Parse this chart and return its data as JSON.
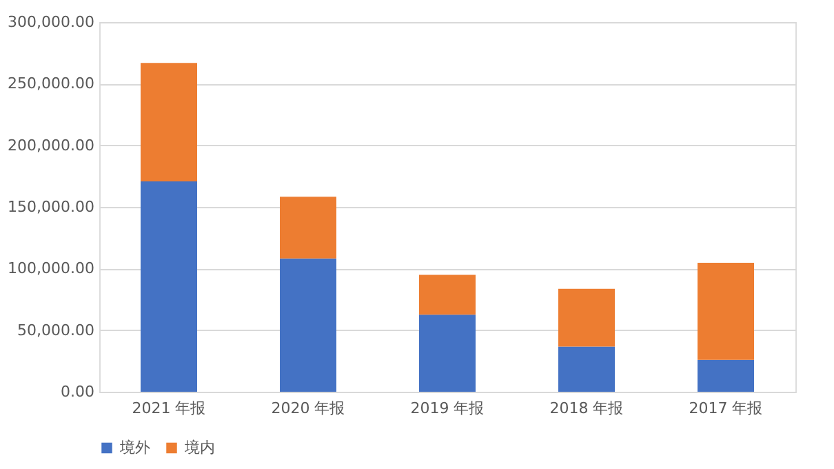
{
  "chart_data": {
    "type": "bar",
    "stacked": true,
    "categories": [
      "2021 年报",
      "2020 年报",
      "2019 年报",
      "2018 年报",
      "2017 年报"
    ],
    "series": [
      {
        "name": "境外",
        "color": "#4472c4",
        "values": [
          170700,
          108200,
          62500,
          36600,
          25900
        ]
      },
      {
        "name": "境内",
        "color": "#ed7d31",
        "values": [
          96100,
          50000,
          32300,
          47000,
          78800
        ]
      }
    ],
    "ylim": [
      0,
      300000
    ],
    "yticks": [
      {
        "value": 0,
        "label": "0.00"
      },
      {
        "value": 50000,
        "label": "50,000.00"
      },
      {
        "value": 100000,
        "label": "100,000.00"
      },
      {
        "value": 150000,
        "label": "150,000.00"
      },
      {
        "value": 200000,
        "label": "200,000.00"
      },
      {
        "value": 250000,
        "label": "250,000.00"
      },
      {
        "value": 300000,
        "label": "300,000.00"
      }
    ],
    "grid": "y",
    "legend": "bottom"
  }
}
